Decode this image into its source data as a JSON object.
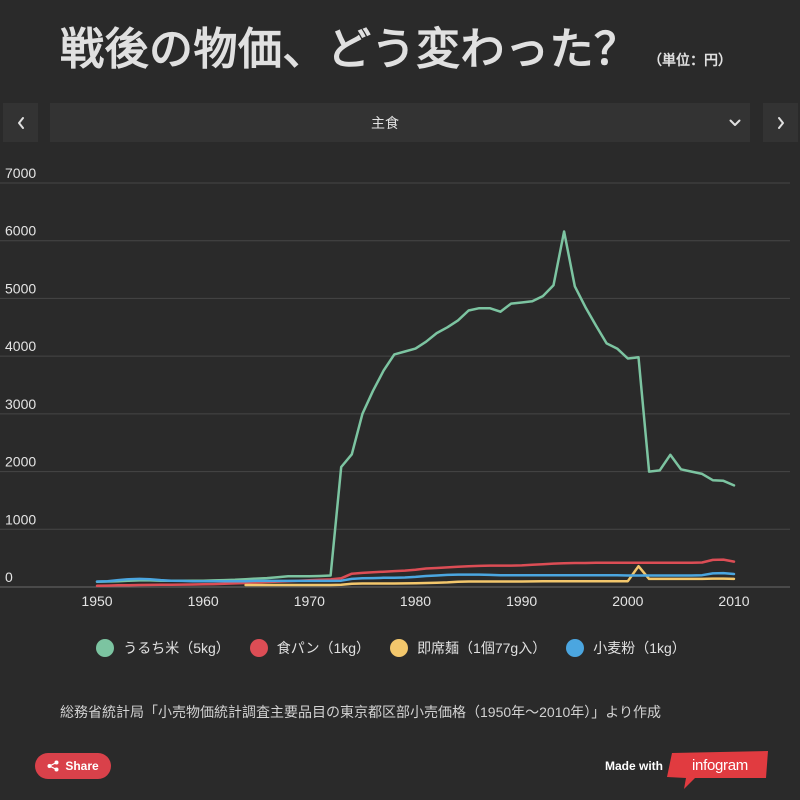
{
  "nav": {
    "prev_icon": "chevron-left-icon",
    "next_icon": "chevron-right-icon",
    "dropdown_icon": "chevron-down-icon",
    "selected_category": "主食"
  },
  "chart_data": {
    "type": "line",
    "title": "戦後の物価、どう変わった？",
    "subtitle": "（単位：円）",
    "xlim": [
      1950,
      2010
    ],
    "ylim": [
      0,
      7000
    ],
    "grid": true,
    "xticks": [
      1950,
      1960,
      1970,
      1980,
      1990,
      2000,
      2010
    ],
    "yticks": [
      0,
      1000,
      2000,
      3000,
      4000,
      5000,
      6000,
      7000
    ],
    "x": [
      1950,
      1951,
      1952,
      1953,
      1954,
      1955,
      1956,
      1957,
      1958,
      1959,
      1960,
      1961,
      1962,
      1963,
      1964,
      1965,
      1966,
      1967,
      1968,
      1969,
      1970,
      1971,
      1972,
      1973,
      1974,
      1975,
      1976,
      1977,
      1978,
      1979,
      1980,
      1981,
      1982,
      1983,
      1984,
      1985,
      1986,
      1987,
      1988,
      1989,
      1990,
      1991,
      1992,
      1993,
      1994,
      1995,
      1996,
      1997,
      1998,
      1999,
      2000,
      2001,
      2002,
      2003,
      2004,
      2005,
      2006,
      2007,
      2008,
      2009,
      2010
    ],
    "series": [
      {
        "name": "うるち米（5kg）",
        "color": "#7cc4a1",
        "values": [
          90,
          95,
          100,
          110,
          115,
          115,
          110,
          110,
          110,
          110,
          110,
          115,
          120,
          125,
          135,
          145,
          155,
          170,
          185,
          185,
          185,
          190,
          200,
          2080,
          2300,
          3000,
          3400,
          3750,
          4030,
          4080,
          4130,
          4250,
          4400,
          4500,
          4620,
          4790,
          4830,
          4830,
          4770,
          4910,
          4930,
          4950,
          5040,
          5230,
          6160,
          5210,
          4850,
          4530,
          4220,
          4130,
          3960,
          3980,
          2000,
          2020,
          2290,
          2040,
          2000,
          1960,
          1850,
          1840,
          1760
        ]
      },
      {
        "name": "食パン（1kg）",
        "color": "#dc4d55",
        "values": [
          20,
          25,
          30,
          32,
          34,
          36,
          38,
          40,
          42,
          44,
          46,
          50,
          56,
          62,
          70,
          78,
          86,
          94,
          100,
          108,
          116,
          124,
          132,
          150,
          230,
          245,
          255,
          265,
          275,
          285,
          300,
          320,
          330,
          340,
          350,
          360,
          365,
          370,
          370,
          370,
          375,
          385,
          395,
          405,
          410,
          415,
          415,
          420,
          420,
          420,
          420,
          420,
          420,
          420,
          420,
          420,
          420,
          425,
          470,
          475,
          440
        ]
      },
      {
        "name": "即席麺（1個77g入）",
        "color": "#f3c76c",
        "values": [
          null,
          null,
          null,
          null,
          null,
          null,
          null,
          null,
          null,
          null,
          null,
          null,
          null,
          null,
          35,
          35,
          35,
          35,
          35,
          35,
          35,
          35,
          35,
          40,
          55,
          60,
          60,
          60,
          60,
          62,
          65,
          70,
          75,
          80,
          90,
          95,
          95,
          95,
          95,
          95,
          95,
          97,
          99,
          100,
          100,
          100,
          100,
          100,
          100,
          100,
          100,
          360,
          140,
          140,
          140,
          140,
          140,
          140,
          145,
          145,
          140
        ]
      },
      {
        "name": "小麦粉（1kg）",
        "color": "#4ba6e0",
        "values": [
          95,
          100,
          120,
          135,
          140,
          135,
          120,
          110,
          105,
          100,
          100,
          100,
          100,
          100,
          100,
          105,
          105,
          105,
          105,
          105,
          105,
          105,
          105,
          110,
          140,
          150,
          155,
          160,
          160,
          165,
          175,
          190,
          200,
          210,
          215,
          215,
          215,
          210,
          205,
          205,
          205,
          205,
          205,
          205,
          205,
          205,
          205,
          205,
          205,
          205,
          200,
          200,
          200,
          200,
          200,
          200,
          200,
          205,
          235,
          240,
          225
        ]
      }
    ]
  },
  "source_note": "総務省統計局「小売物価統計調査主要品目の東京都区部小売価格（1950年～2010年）」より作成",
  "footer": {
    "share_icon": "share-icon",
    "share_label": "Share",
    "made_with": "Made with",
    "brand": "infogram"
  },
  "theme": {
    "background": "#2a2a2a",
    "panel": "#333333",
    "grid": "#464646",
    "axis": "#6a6a6a",
    "tick_text": "#e4e4e4",
    "share_button": "#d9414a",
    "brand": "#e13b40"
  }
}
